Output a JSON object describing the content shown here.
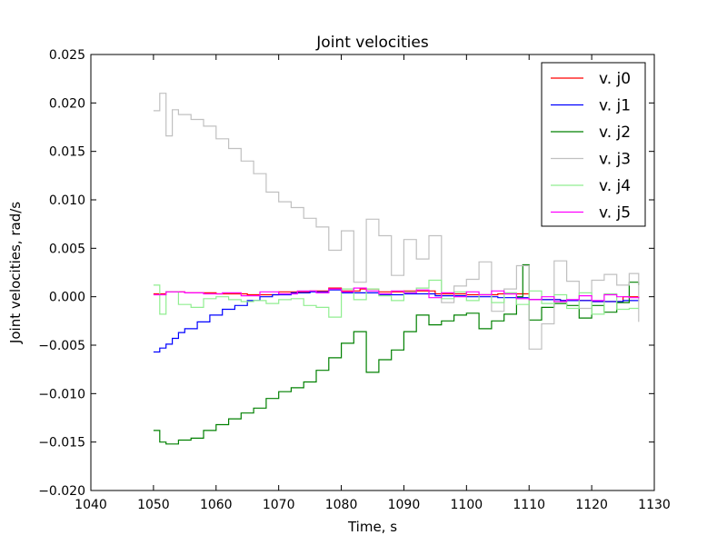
{
  "chart_data": {
    "type": "line",
    "title": "Joint velocities",
    "xlabel": "Time, s",
    "ylabel": "Joint velocities, rad/s",
    "xlim": [
      1040,
      1130
    ],
    "ylim": [
      -0.02,
      0.025
    ],
    "x_ticks": [
      1040,
      1050,
      1060,
      1070,
      1080,
      1090,
      1100,
      1110,
      1120,
      1130
    ],
    "x_tick_labels": [
      "1040",
      "1050",
      "1060",
      "1070",
      "1080",
      "1090",
      "1100",
      "1110",
      "1120",
      "1130"
    ],
    "y_ticks": [
      -0.02,
      -0.015,
      -0.01,
      -0.005,
      0.0,
      0.005,
      0.01,
      0.015,
      0.02,
      0.025
    ],
    "y_tick_labels": [
      "−0.020",
      "−0.015",
      "−0.010",
      "−0.005",
      "0.000",
      "0.005",
      "0.010",
      "0.015",
      "0.020",
      "0.025"
    ],
    "grid": false,
    "legend_position": "top-right",
    "step": true,
    "series": [
      {
        "name": "v. j0",
        "color": "#ff0000",
        "x": [
          1050,
          1052,
          1055,
          1060,
          1065,
          1070,
          1075,
          1078,
          1080,
          1083,
          1086,
          1090,
          1095,
          1100,
          1105,
          1110,
          1115,
          1120,
          1125,
          1127.5
        ],
        "y": [
          0.0003,
          0.0005,
          0.0004,
          0.0003,
          0.0002,
          0.0005,
          0.0006,
          0.0009,
          0.0006,
          0.0008,
          0.0005,
          0.0006,
          0.0003,
          0.0002,
          0.0003,
          -0.0003,
          -0.0004,
          -0.0005,
          0.0,
          -0.0002
        ]
      },
      {
        "name": "v. j1",
        "color": "#0000ff",
        "x": [
          1050,
          1051,
          1052,
          1053,
          1054,
          1055,
          1057,
          1059,
          1061,
          1063,
          1065,
          1067,
          1069,
          1072,
          1075,
          1078,
          1080,
          1083,
          1086,
          1090,
          1095,
          1100,
          1105,
          1110,
          1115,
          1120,
          1125,
          1127.5
        ],
        "y": [
          -0.0057,
          -0.0053,
          -0.0049,
          -0.0043,
          -0.0037,
          -0.0033,
          -0.0026,
          -0.0019,
          -0.0013,
          -0.0009,
          -0.0004,
          0.0,
          0.0002,
          0.0004,
          0.0005,
          0.0007,
          0.0004,
          0.0004,
          0.0002,
          0.0003,
          0.0001,
          0.0,
          -0.0001,
          -0.0003,
          -0.0004,
          -0.0005,
          -0.0004,
          -0.0003
        ]
      },
      {
        "name": "v. j2",
        "color": "#008000",
        "x": [
          1050,
          1051,
          1052,
          1054,
          1056,
          1058,
          1060,
          1062,
          1064,
          1066,
          1068,
          1070,
          1072,
          1074,
          1076,
          1078,
          1080,
          1082,
          1084,
          1086,
          1088,
          1090,
          1092,
          1094,
          1096,
          1098,
          1100,
          1102,
          1104,
          1106,
          1108,
          1109,
          1110,
          1112,
          1114,
          1116,
          1118,
          1120,
          1122,
          1124,
          1126,
          1127.5
        ],
        "y": [
          -0.0138,
          -0.015,
          -0.0152,
          -0.0148,
          -0.0146,
          -0.0138,
          -0.0132,
          -0.0126,
          -0.012,
          -0.0115,
          -0.0105,
          -0.0098,
          -0.0094,
          -0.0088,
          -0.0076,
          -0.0063,
          -0.0048,
          -0.0036,
          -0.0078,
          -0.0065,
          -0.0055,
          -0.0036,
          -0.0019,
          -0.0029,
          -0.0025,
          -0.0019,
          -0.0017,
          -0.0033,
          -0.0025,
          -0.0018,
          0.0,
          0.0033,
          -0.0024,
          -0.0011,
          -0.0007,
          -0.0009,
          -0.0022,
          -0.0009,
          -0.0016,
          -0.0006,
          0.0015,
          0.0012
        ]
      },
      {
        "name": "v. j3",
        "color": "#c0c0c0",
        "x": [
          1050,
          1051,
          1052,
          1053,
          1054,
          1056,
          1058,
          1060,
          1062,
          1064,
          1066,
          1068,
          1070,
          1072,
          1074,
          1076,
          1078,
          1080,
          1082,
          1084,
          1086,
          1088,
          1090,
          1092,
          1094,
          1096,
          1098,
          1100,
          1102,
          1104,
          1106,
          1108,
          1110,
          1112,
          1114,
          1116,
          1118,
          1120,
          1122,
          1124,
          1126,
          1127.5
        ],
        "y": [
          0.0192,
          0.021,
          0.0166,
          0.0193,
          0.0188,
          0.0183,
          0.0176,
          0.0163,
          0.0153,
          0.014,
          0.0127,
          0.0108,
          0.0098,
          0.0092,
          0.0081,
          0.0072,
          0.0048,
          0.0068,
          0.0015,
          0.008,
          0.0063,
          0.0022,
          0.0059,
          0.0039,
          0.0063,
          -0.0006,
          0.0011,
          0.0018,
          0.0036,
          -0.0015,
          0.0008,
          0.0032,
          -0.0054,
          -0.0028,
          0.0037,
          0.0016,
          -0.0012,
          0.0017,
          0.0023,
          0.0012,
          0.0024,
          -0.0026
        ]
      },
      {
        "name": "v. j4",
        "color": "#90ee90",
        "x": [
          1050,
          1051,
          1052,
          1054,
          1056,
          1058,
          1060,
          1062,
          1064,
          1066,
          1068,
          1070,
          1072,
          1074,
          1076,
          1078,
          1080,
          1082,
          1084,
          1086,
          1088,
          1090,
          1092,
          1094,
          1096,
          1098,
          1100,
          1102,
          1104,
          1106,
          1108,
          1110,
          1112,
          1114,
          1116,
          1118,
          1120,
          1122,
          1124,
          1126,
          1127.5
        ],
        "y": [
          0.0012,
          -0.0018,
          0.0005,
          -0.0008,
          -0.0011,
          -0.0002,
          0.0,
          -0.0003,
          -0.0005,
          -0.0004,
          -0.0007,
          -0.0003,
          -0.0002,
          -0.0009,
          -0.0011,
          -0.0021,
          0.0008,
          -0.0003,
          0.0008,
          0.0001,
          -0.0004,
          0.0005,
          0.0009,
          0.0017,
          -0.0002,
          0.0005,
          -0.0004,
          0.0002,
          -0.0006,
          0.0004,
          -0.0008,
          0.0006,
          -0.0007,
          0.0002,
          -0.0012,
          0.0004,
          -0.0018,
          0.0003,
          -0.0013,
          -0.0012,
          -0.0012
        ]
      },
      {
        "name": "v. j5",
        "color": "#ff00ff",
        "x": [
          1050,
          1052,
          1055,
          1058,
          1061,
          1064,
          1067,
          1070,
          1073,
          1076,
          1078,
          1080,
          1082,
          1084,
          1086,
          1088,
          1090,
          1092,
          1094,
          1096,
          1098,
          1100,
          1102,
          1104,
          1106,
          1108,
          1110,
          1112,
          1114,
          1116,
          1118,
          1120,
          1122,
          1124,
          1126,
          1127.5
        ],
        "y": [
          0.0002,
          0.0005,
          0.0004,
          0.0003,
          0.0004,
          0.0001,
          0.0005,
          0.0003,
          0.0006,
          0.0004,
          0.0008,
          0.0005,
          0.0009,
          0.0006,
          0.0003,
          0.0006,
          0.0004,
          0.0007,
          -0.0001,
          0.0004,
          0.0,
          0.0005,
          0.0002,
          0.0006,
          0.0003,
          -0.0002,
          -0.0003,
          0.0,
          -0.0005,
          -0.0003,
          0.0001,
          -0.0004,
          0.0002,
          0.0,
          -0.0001,
          0.0
        ]
      }
    ]
  }
}
